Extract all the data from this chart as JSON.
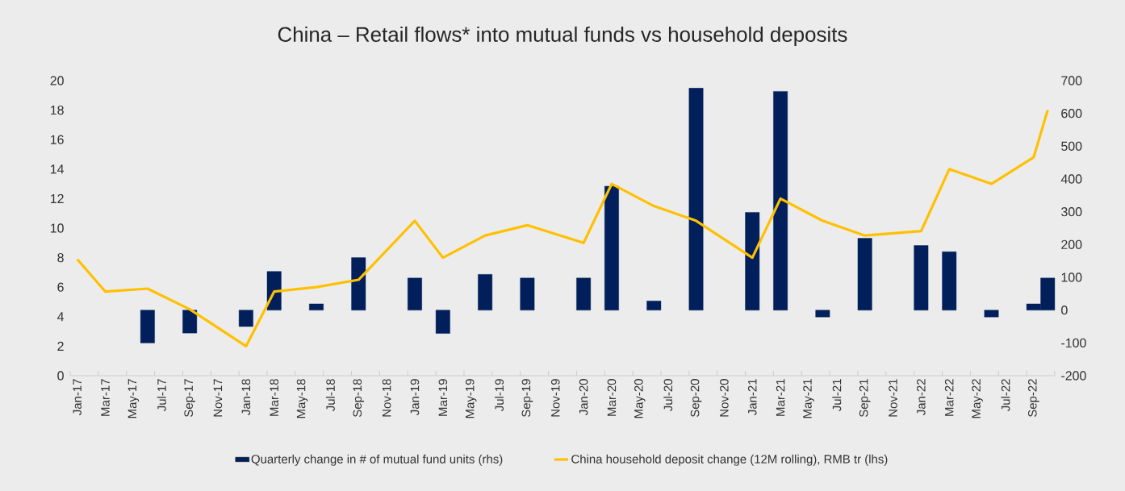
{
  "chart_data": {
    "type": "bar",
    "title": "China – Retail flows* into mutual funds vs household deposits",
    "xlim": [
      "2016-12-16",
      "2022-10-16"
    ],
    "xticks": [
      {
        "value": "2017-01",
        "label": "Jan-17"
      },
      {
        "value": "2017-03",
        "label": "Mar-17"
      },
      {
        "value": "2017-05",
        "label": "May-17"
      },
      {
        "value": "2017-07",
        "label": "Jul-17"
      },
      {
        "value": "2017-09",
        "label": "Sep-17"
      },
      {
        "value": "2017-11",
        "label": "Nov-17"
      },
      {
        "value": "2018-01",
        "label": "Jan-18"
      },
      {
        "value": "2018-03",
        "label": "Mar-18"
      },
      {
        "value": "2018-05",
        "label": "May-18"
      },
      {
        "value": "2018-07",
        "label": "Jul-18"
      },
      {
        "value": "2018-09",
        "label": "Sep-18"
      },
      {
        "value": "2018-11",
        "label": "Nov-18"
      },
      {
        "value": "2019-01",
        "label": "Jan-19"
      },
      {
        "value": "2019-03",
        "label": "Mar-19"
      },
      {
        "value": "2019-05",
        "label": "May-19"
      },
      {
        "value": "2019-07",
        "label": "Jul-19"
      },
      {
        "value": "2019-09",
        "label": "Sep-19"
      },
      {
        "value": "2019-11",
        "label": "Nov-19"
      },
      {
        "value": "2020-01",
        "label": "Jan-20"
      },
      {
        "value": "2020-03",
        "label": "Mar-20"
      },
      {
        "value": "2020-05",
        "label": "May-20"
      },
      {
        "value": "2020-07",
        "label": "Jul-20"
      },
      {
        "value": "2020-09",
        "label": "Sep-20"
      },
      {
        "value": "2020-11",
        "label": "Nov-20"
      },
      {
        "value": "2021-01",
        "label": "Jan-21"
      },
      {
        "value": "2021-03",
        "label": "Mar-21"
      },
      {
        "value": "2021-05",
        "label": "May-21"
      },
      {
        "value": "2021-07",
        "label": "Jul-21"
      },
      {
        "value": "2021-09",
        "label": "Sep-21"
      },
      {
        "value": "2021-11",
        "label": "Nov-21"
      },
      {
        "value": "2022-01",
        "label": "Jan-22"
      },
      {
        "value": "2022-03",
        "label": "Mar-22"
      },
      {
        "value": "2022-05",
        "label": "May-22"
      },
      {
        "value": "2022-07",
        "label": "Jul-22"
      },
      {
        "value": "2022-09",
        "label": "Sep-22"
      }
    ],
    "ylim": [
      0,
      20
    ],
    "yticks": [
      0,
      2,
      4,
      6,
      8,
      10,
      12,
      14,
      16,
      18,
      20
    ],
    "y2lim": [
      -200,
      700
    ],
    "y2ticks": [
      -200,
      -100,
      0,
      100,
      200,
      300,
      400,
      500,
      600,
      700
    ],
    "legend": "bottom",
    "marker": "none",
    "line_style": "solid",
    "series": [
      {
        "name": "Quarterly change in # of mutual fund units (rhs)",
        "axis": "y2",
        "color": "#001f5b",
        "x": [
          "2017-06",
          "2017-09",
          "2018-01",
          "2018-03",
          "2018-06",
          "2018-09",
          "2019-01",
          "2019-03",
          "2019-06",
          "2019-09",
          "2020-01",
          "2020-03",
          "2020-06",
          "2020-09",
          "2021-01",
          "2021-03",
          "2021-06",
          "2021-09",
          "2022-01",
          "2022-03",
          "2022-06",
          "2022-09",
          "2022-10"
        ],
        "values": [
          -100,
          -70,
          -50,
          118,
          19,
          160,
          98,
          -71,
          109,
          98,
          98,
          378,
          28,
          677,
          298,
          667,
          -21,
          219,
          197,
          178,
          -21,
          19,
          98
        ]
      },
      {
        "name": "China household deposit change (12M rolling), RMB tr (lhs)",
        "type": "line",
        "color": "#ffc000",
        "x": [
          "2017-01",
          "2017-03",
          "2017-06",
          "2017-09",
          "2018-01",
          "2018-03",
          "2018-06",
          "2018-09",
          "2019-01",
          "2019-03",
          "2019-06",
          "2019-09",
          "2020-01",
          "2020-03",
          "2020-06",
          "2020-09",
          "2021-01",
          "2021-03",
          "2021-06",
          "2021-09",
          "2022-01",
          "2022-03",
          "2022-06",
          "2022-09",
          "2022-10"
        ],
        "values": [
          7.9,
          5.7,
          5.9,
          4.5,
          2.0,
          5.7,
          6.0,
          6.5,
          10.5,
          8.0,
          9.5,
          10.2,
          9.0,
          13.0,
          11.5,
          10.5,
          8.0,
          12.0,
          10.5,
          9.5,
          9.8,
          14.0,
          13.0,
          14.8,
          18.0
        ]
      }
    ]
  }
}
